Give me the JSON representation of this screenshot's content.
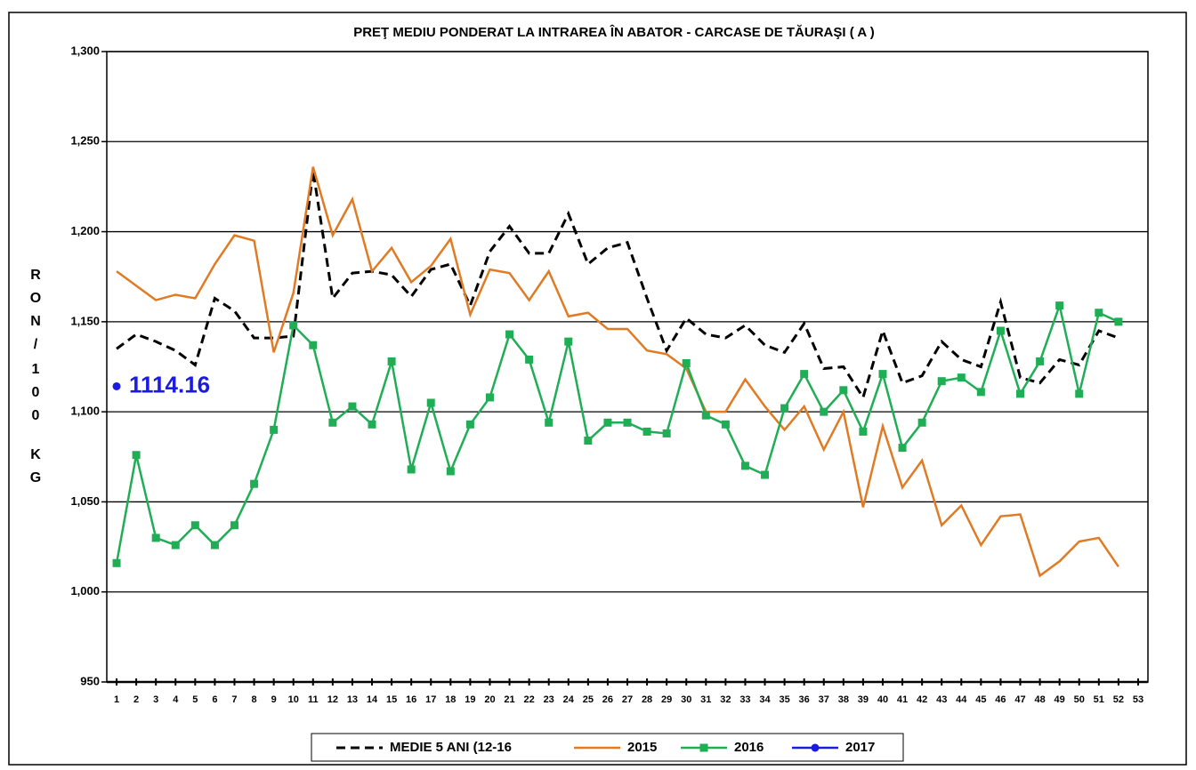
{
  "chart_data": {
    "type": "line",
    "title": "PREŢ MEDIU PONDERAT LA INTRAREA ÎN ABATOR - CARCASE DE TĂURAŞI ( A )",
    "ylabel": "RON/100 KG",
    "categories": [
      "1",
      "2",
      "3",
      "4",
      "5",
      "6",
      "7",
      "8",
      "9",
      "10",
      "11",
      "12",
      "13",
      "14",
      "15",
      "16",
      "17",
      "18",
      "19",
      "20",
      "21",
      "22",
      "23",
      "24",
      "25",
      "26",
      "27",
      "28",
      "29",
      "30",
      "31",
      "32",
      "33",
      "34",
      "35",
      "36",
      "37",
      "38",
      "39",
      "40",
      "41",
      "42",
      "43",
      "44",
      "45",
      "46",
      "47",
      "48",
      "49",
      "50",
      "51",
      "52",
      "53"
    ],
    "ylim": [
      950,
      1300
    ],
    "yticks": [
      950,
      {
        "value": 1000,
        "label": "1,000"
      },
      {
        "value": 1050,
        "label": "1,050"
      },
      {
        "value": 1100,
        "label": "1,100"
      },
      {
        "value": 1150,
        "label": "1,150"
      },
      {
        "value": 1200,
        "label": "1,200"
      },
      {
        "value": 1250,
        "label": "1,250"
      },
      {
        "value": 1300,
        "label": "1,300"
      }
    ],
    "grid": true,
    "legend": "bottom",
    "series": [
      {
        "name": "MEDIE 5 ANI (12-16",
        "color": "#000000",
        "dash": true,
        "marker": null,
        "values": [
          1135,
          1143,
          1139,
          1134,
          1126,
          1163,
          1156,
          1141,
          1141,
          1142,
          1234,
          1163,
          1177,
          1178,
          1176,
          1164,
          1179,
          1182,
          1159,
          1189,
          1203,
          1188,
          1188,
          1210,
          1182,
          1191,
          1194,
          1163,
          1134,
          1152,
          1143,
          1141,
          1148,
          1137,
          1133,
          1149,
          1124,
          1125,
          1108,
          1145,
          1116,
          1120,
          1139,
          1129,
          1125,
          1161,
          1119,
          1116,
          1129,
          1126,
          1145,
          1141,
          null
        ]
      },
      {
        "name": "2015",
        "color": "#e07b24",
        "dash": false,
        "marker": null,
        "values": [
          1178,
          1170,
          1162,
          1165,
          1163,
          1182,
          1198,
          1195,
          1133,
          1166,
          1236,
          1198,
          1218,
          1178,
          1191,
          1172,
          1181,
          1196,
          1154,
          1179,
          1177,
          1162,
          1178,
          1153,
          1155,
          1146,
          1146,
          1134,
          1132,
          1124,
          1100,
          1100,
          1118,
          1103,
          1090,
          1103,
          1079,
          1100,
          1047,
          1092,
          1058,
          1073,
          1037,
          1048,
          1026,
          1042,
          1043,
          1009,
          1017,
          1028,
          1030,
          1014,
          null
        ]
      },
      {
        "name": "2016",
        "color": "#1fae55",
        "dash": false,
        "marker": "square",
        "values": [
          1016,
          1076,
          1030,
          1026,
          1037,
          1026,
          1037,
          1060,
          1090,
          1148,
          1137,
          1094,
          1103,
          1093,
          1128,
          1068,
          1105,
          1067,
          1093,
          1108,
          1143,
          1129,
          1094,
          1139,
          1084,
          1094,
          1094,
          1089,
          1088,
          1127,
          1098,
          1093,
          1070,
          1065,
          1102,
          1121,
          1100,
          1112,
          1089,
          1121,
          1080,
          1094,
          1117,
          1119,
          1111,
          1145,
          1110,
          1128,
          1159,
          1110,
          1155,
          1150,
          null
        ]
      },
      {
        "name": "2017",
        "color": "#1a1ae0",
        "dash": false,
        "marker": "circle",
        "data_labels": true,
        "values": [
          1114.16,
          null,
          null,
          null,
          null,
          null,
          null,
          null,
          null,
          null,
          null,
          null,
          null,
          null,
          null,
          null,
          null,
          null,
          null,
          null,
          null,
          null,
          null,
          null,
          null,
          null,
          null,
          null,
          null,
          null,
          null,
          null,
          null,
          null,
          null,
          null,
          null,
          null,
          null,
          null,
          null,
          null,
          null,
          null,
          null,
          null,
          null,
          null,
          null,
          null,
          null,
          null,
          null
        ]
      }
    ]
  }
}
